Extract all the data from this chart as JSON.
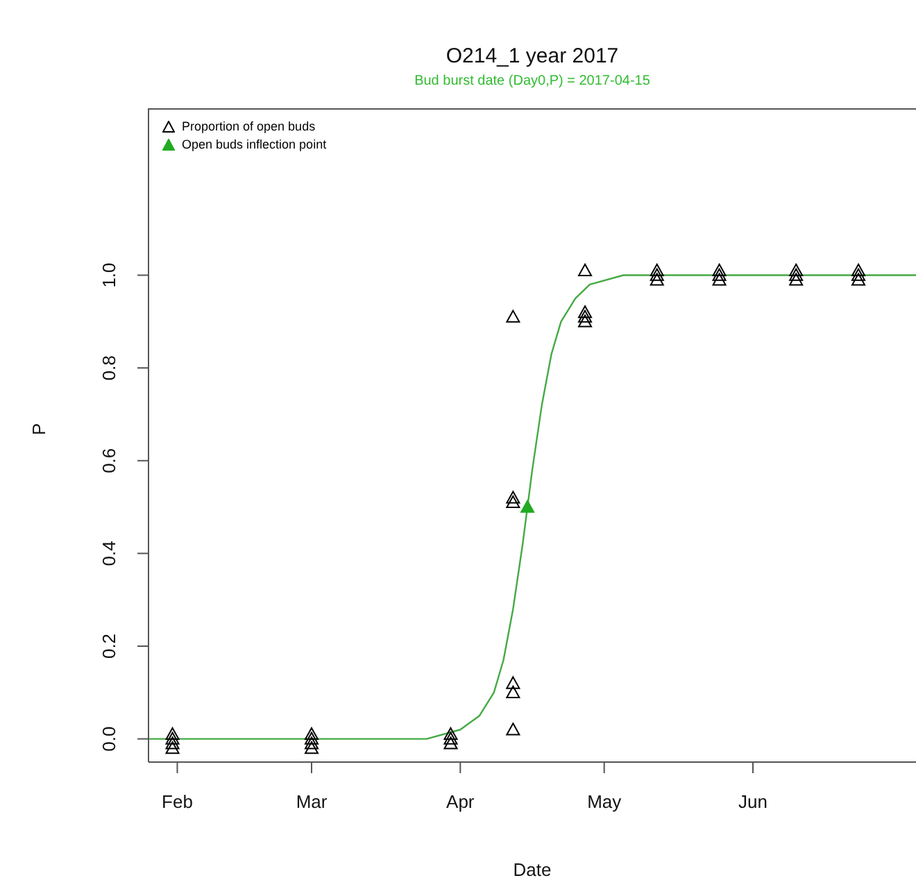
{
  "chart_data": {
    "type": "scatter",
    "title": "O214_1  year 2017",
    "subtitle": "Bud burst date (Day0,P) = 2017-04-15",
    "xlabel": "Date",
    "ylabel": "P",
    "xlim": [
      "2017-01-26",
      "2017-07-05"
    ],
    "xticks": [
      {
        "value": "2017-02-01",
        "label": "Feb"
      },
      {
        "value": "2017-03-01",
        "label": "Mar"
      },
      {
        "value": "2017-04-01",
        "label": "Apr"
      },
      {
        "value": "2017-05-01",
        "label": "May"
      },
      {
        "value": "2017-06-01",
        "label": "Jun"
      }
    ],
    "ylim": [
      -0.05,
      1.36
    ],
    "yticks": [
      {
        "value": 0,
        "label": "0.0"
      },
      {
        "value": 0.2,
        "label": "0.2"
      },
      {
        "value": 0.4,
        "label": "0.4"
      },
      {
        "value": 0.6,
        "label": "0.6"
      },
      {
        "value": 0.8,
        "label": "0.8"
      },
      {
        "value": 1,
        "label": "1.0"
      }
    ],
    "legend": "top left",
    "marker": "triangle",
    "series": [
      {
        "name": "Proportion of open buds",
        "color": "#000000",
        "x": [
          "2017-01-31",
          "2017-01-31",
          "2017-01-31",
          "2017-01-31",
          "2017-03-01",
          "2017-03-01",
          "2017-03-01",
          "2017-03-01",
          "2017-03-30",
          "2017-03-30",
          "2017-03-30",
          "2017-04-12",
          "2017-04-12",
          "2017-04-12",
          "2017-04-12",
          "2017-04-12",
          "2017-04-12",
          "2017-04-27",
          "2017-04-27",
          "2017-04-27",
          "2017-04-27",
          "2017-05-12",
          "2017-05-12",
          "2017-05-12",
          "2017-05-25",
          "2017-05-25",
          "2017-05-25",
          "2017-06-10",
          "2017-06-10",
          "2017-06-10",
          "2017-06-23",
          "2017-06-23",
          "2017-06-23"
        ],
        "values": [
          0.01,
          0,
          -0.01,
          -0.02,
          0.01,
          0,
          -0.01,
          -0.02,
          0.01,
          0,
          -0.01,
          0.91,
          0.52,
          0.51,
          0.12,
          0.1,
          0.02,
          1.01,
          0.92,
          0.91,
          0.9,
          1.01,
          1,
          0.99,
          1.01,
          1,
          0.99,
          1.01,
          1,
          0.99,
          1.01,
          1,
          0.99
        ]
      },
      {
        "name": "Open buds inflection point",
        "color": "#22aa22",
        "x": [
          "2017-04-15"
        ],
        "values": [
          0.5
        ]
      },
      {
        "type": "line",
        "color": "#44aa44",
        "marker": "none",
        "x": [
          "2017-01-26",
          "2017-03-25",
          "2017-04-01",
          "2017-04-05",
          "2017-04-08",
          "2017-04-10",
          "2017-04-12",
          "2017-04-14",
          "2017-04-15",
          "2017-04-16",
          "2017-04-18",
          "2017-04-20",
          "2017-04-22",
          "2017-04-25",
          "2017-04-28",
          "2017-05-05",
          "2017-07-05"
        ],
        "values": [
          0,
          0,
          0.02,
          0.05,
          0.1,
          0.17,
          0.28,
          0.42,
          0.5,
          0.58,
          0.72,
          0.83,
          0.9,
          0.95,
          0.98,
          1,
          1
        ]
      }
    ]
  }
}
